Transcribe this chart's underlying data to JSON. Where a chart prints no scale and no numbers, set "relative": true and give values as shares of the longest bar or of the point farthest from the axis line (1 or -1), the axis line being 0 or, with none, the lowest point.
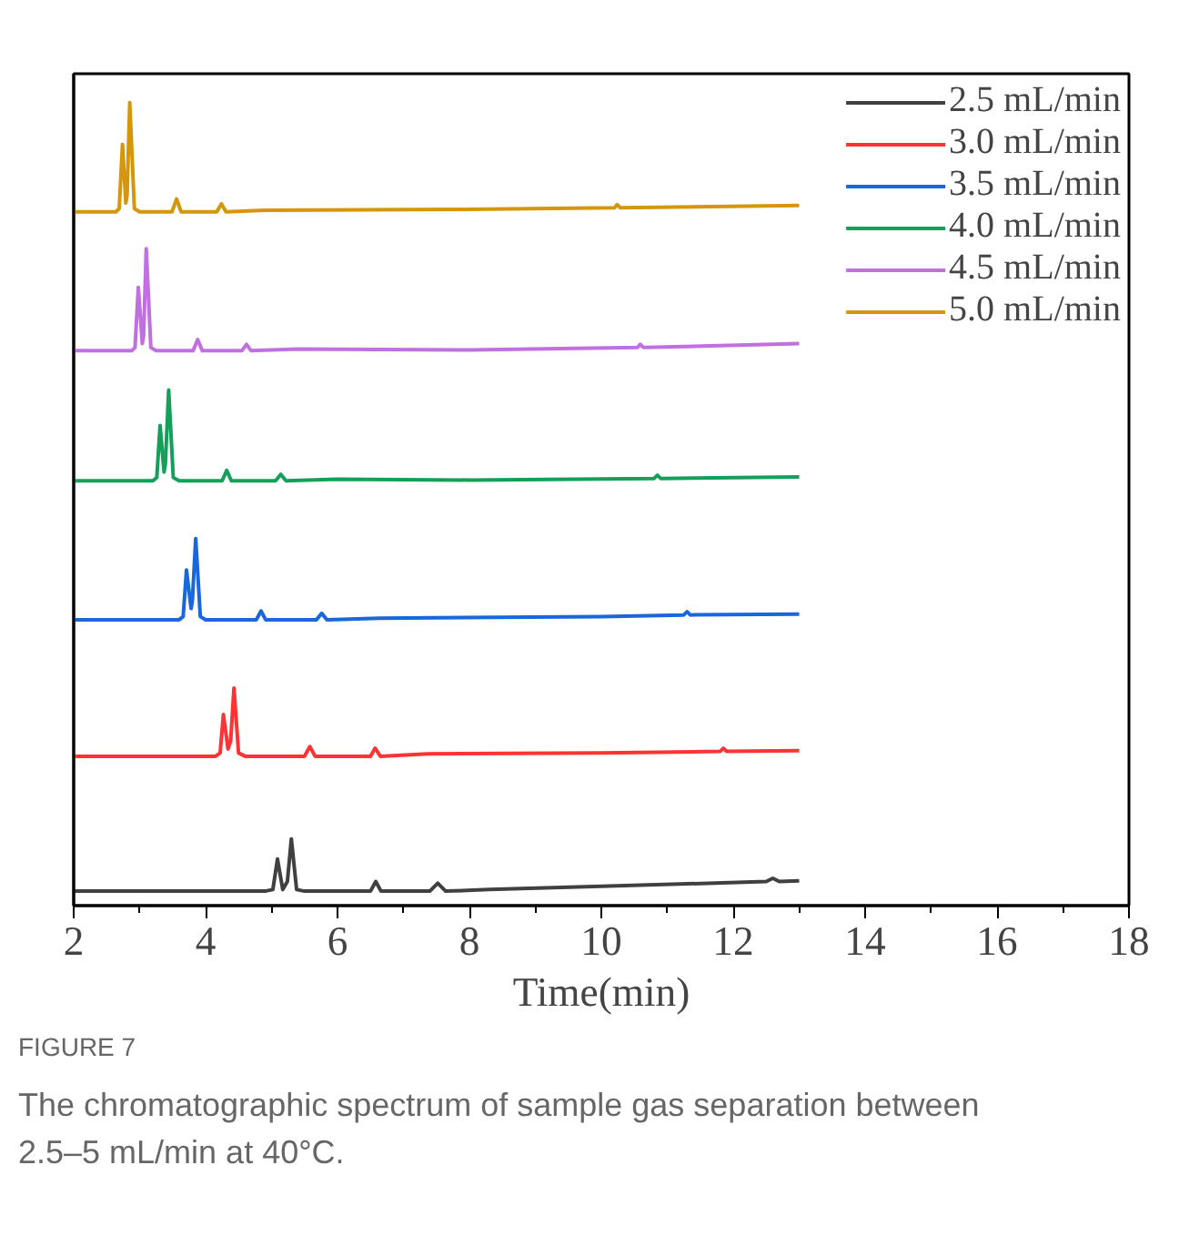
{
  "chart_data": {
    "type": "line",
    "relative": true,
    "xlabel": "Time(min)",
    "xlim": [
      2,
      18
    ],
    "xticks": [
      2,
      4,
      6,
      8,
      10,
      12,
      14,
      16,
      18
    ],
    "legend": "top right",
    "grid": false,
    "tick_labels": "x",
    "annotations": [
      "FIGURE 7",
      "The chromatographic spectrum of sample gas separation between 2.5–5 mL/min at 40°C."
    ],
    "series": [
      {
        "name": "2.5 mL/min",
        "color": "#404040",
        "x": [
          2,
          4.9,
          5.02,
          5.09,
          5.17,
          5.24,
          5.3,
          5.38,
          5.5,
          6.5,
          6.58,
          6.66,
          7.4,
          7.52,
          7.64,
          8.3,
          10,
          12.5,
          12.6,
          12.7,
          13
        ],
        "values": [
          0.018,
          0.018,
          0.02,
          0.058,
          0.02,
          0.03,
          0.083,
          0.02,
          0.018,
          0.018,
          0.03,
          0.018,
          0.018,
          0.028,
          0.018,
          0.02,
          0.024,
          0.03,
          0.034,
          0.03,
          0.031
        ]
      },
      {
        "name": "3.0 mL/min",
        "color": "#ff3333",
        "x": [
          2,
          4.15,
          4.22,
          4.27,
          4.34,
          4.38,
          4.43,
          4.5,
          4.6,
          5.5,
          5.58,
          5.66,
          6.5,
          6.57,
          6.65,
          7.37,
          10,
          11.8,
          11.85,
          11.9,
          13
        ],
        "values": [
          0.186,
          0.186,
          0.19,
          0.238,
          0.195,
          0.205,
          0.271,
          0.19,
          0.186,
          0.186,
          0.198,
          0.186,
          0.186,
          0.196,
          0.186,
          0.189,
          0.19,
          0.192,
          0.196,
          0.192,
          0.193
        ]
      },
      {
        "name": "3.5 mL/min",
        "color": "#1a66dd",
        "x": [
          2,
          3.6,
          3.66,
          3.71,
          3.78,
          3.8,
          3.85,
          3.92,
          4.0,
          4.77,
          4.84,
          4.91,
          5.68,
          5.76,
          5.84,
          6.63,
          10,
          11.25,
          11.3,
          11.35,
          13
        ],
        "values": [
          0.356,
          0.356,
          0.36,
          0.418,
          0.37,
          0.38,
          0.457,
          0.36,
          0.356,
          0.356,
          0.367,
          0.356,
          0.356,
          0.364,
          0.356,
          0.358,
          0.36,
          0.362,
          0.366,
          0.362,
          0.363
        ]
      },
      {
        "name": "4.0 mL/min",
        "color": "#14a05a",
        "x": [
          2,
          3.2,
          3.26,
          3.31,
          3.37,
          3.39,
          3.44,
          3.51,
          3.6,
          4.25,
          4.32,
          4.39,
          5.06,
          5.14,
          5.22,
          5.99,
          8,
          10.8,
          10.85,
          10.9,
          13
        ],
        "values": [
          0.529,
          0.529,
          0.533,
          0.598,
          0.54,
          0.55,
          0.642,
          0.533,
          0.529,
          0.529,
          0.542,
          0.529,
          0.529,
          0.537,
          0.529,
          0.531,
          0.53,
          0.532,
          0.536,
          0.532,
          0.534
        ]
      },
      {
        "name": "4.5 mL/min",
        "color": "#c070e0",
        "x": [
          2,
          2.88,
          2.93,
          2.98,
          3.04,
          3.06,
          3.1,
          3.17,
          3.25,
          3.81,
          3.88,
          3.95,
          4.55,
          4.62,
          4.69,
          5.4,
          8,
          10.55,
          10.59,
          10.64,
          13
        ],
        "values": [
          0.691,
          0.691,
          0.695,
          0.77,
          0.7,
          0.71,
          0.818,
          0.695,
          0.691,
          0.691,
          0.705,
          0.691,
          0.691,
          0.699,
          0.691,
          0.693,
          0.692,
          0.695,
          0.699,
          0.695,
          0.7
        ]
      },
      {
        "name": "5.0 mL/min",
        "color": "#d4960a",
        "x": [
          2,
          2.64,
          2.69,
          2.74,
          2.79,
          2.81,
          2.85,
          2.92,
          3.0,
          3.49,
          3.56,
          3.63,
          4.17,
          4.24,
          4.31,
          4.91,
          8,
          10.2,
          10.24,
          10.29,
          13
        ],
        "values": [
          0.864,
          0.864,
          0.868,
          0.948,
          0.875,
          0.885,
          1,
          0.868,
          0.864,
          0.864,
          0.88,
          0.864,
          0.864,
          0.874,
          0.864,
          0.866,
          0.867,
          0.869,
          0.873,
          0.869,
          0.872
        ]
      }
    ]
  }
}
